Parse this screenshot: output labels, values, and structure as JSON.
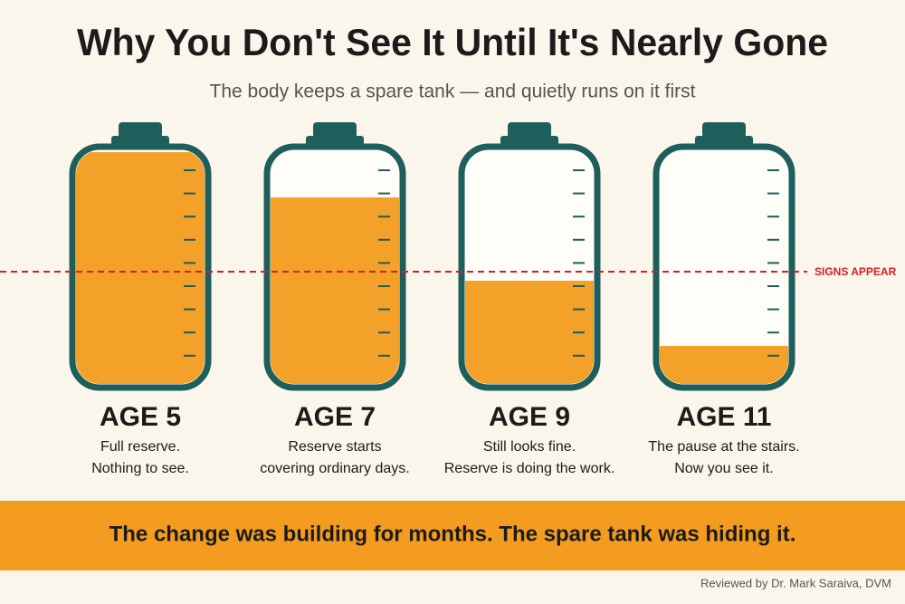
{
  "header": {
    "title": "Why You Don't See It Until It's Nearly Gone",
    "subtitle": "The body keeps a spare tank — and quietly runs on it first"
  },
  "marker_label": "SIGNS APPEAR",
  "tanks": [
    {
      "age": "AGE 5",
      "description": [
        "Full reserve.",
        "Nothing to see."
      ]
    },
    {
      "age": "AGE 7",
      "description": [
        "Reserve starts",
        "covering ordinary days."
      ]
    },
    {
      "age": "AGE 9",
      "description": [
        "Still looks fine.",
        "Reserve is doing the work."
      ]
    },
    {
      "age": "AGE 11",
      "description": [
        "The pause at the stairs.",
        "Now you see it."
      ]
    }
  ],
  "banner": "The change was building for months. The spare tank was hiding it.",
  "footer": "Reviewed by Dr. Mark Saraiva, DVM"
}
